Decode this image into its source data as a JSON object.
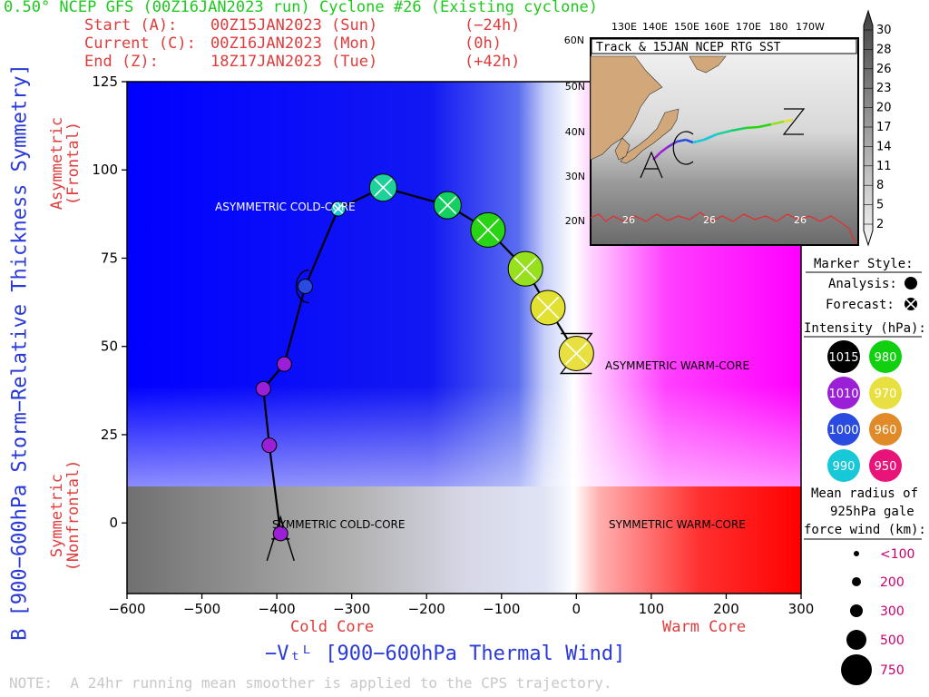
{
  "header": {
    "title": "0.50° NCEP GFS (00Z16JAN2023 run) Cyclone #26 (Existing cyclone)",
    "start": {
      "label": "Start (A):",
      "time": "00Z15JAN2023 (Sun)",
      "offset": "(−24h)"
    },
    "current": {
      "label": "Current (C):",
      "time": "00Z16JAN2023 (Mon)",
      "offset": "(0h)"
    },
    "end": {
      "label": "End (Z):",
      "time": "18Z17JAN2023 (Tue)",
      "offset": "(+42h)"
    }
  },
  "chart_data": {
    "type": "scatter",
    "xlabel": "−Vₜᴸ [900−600hPa Thermal Wind]",
    "ylabel": "B [900−600hPa Storm−Relative Thickness Symmetry]",
    "xlim": [
      -600,
      300
    ],
    "ylim": [
      -20,
      125
    ],
    "x_ticks": [
      -600,
      -500,
      -400,
      -300,
      -200,
      -100,
      0,
      100,
      200,
      300
    ],
    "y_ticks": [
      0,
      25,
      50,
      75,
      100,
      125
    ],
    "x_side_labels": {
      "left": "Cold Core",
      "right": "Warm Core"
    },
    "y_side_labels": {
      "top": "Asymmetric\n(Frontal)",
      "bottom": "Symmetric\n(Nonfrontal)"
    },
    "quadrants": [
      "ASYMMETRIC COLD-CORE",
      "ASYMMETRIC WARM-CORE",
      "SYMMETRIC COLD-CORE",
      "SYMMETRIC WARM-CORE"
    ],
    "track": [
      {
        "x": -395,
        "y": -3,
        "color": "#9b1fd6",
        "type": "analysis",
        "mark": "A",
        "size": 1
      },
      {
        "x": -410,
        "y": 22,
        "color": "#9b1fd6",
        "type": "analysis",
        "size": 1
      },
      {
        "x": -418,
        "y": 38,
        "color": "#9b1fd6",
        "type": "analysis",
        "size": 1
      },
      {
        "x": -390,
        "y": 45,
        "color": "#9b1fd6",
        "type": "analysis",
        "size": 1
      },
      {
        "x": -362,
        "y": 67,
        "color": "#2a4be0",
        "type": "analysis",
        "mark": "C",
        "size": 1
      },
      {
        "x": -318,
        "y": 89,
        "color": "#17c8d8",
        "type": "forecast",
        "size": 1
      },
      {
        "x": -258,
        "y": 95,
        "color": "#1ed09a",
        "type": "forecast",
        "size": 2
      },
      {
        "x": -172,
        "y": 90,
        "color": "#14d060",
        "type": "forecast",
        "size": 2
      },
      {
        "x": -118,
        "y": 83,
        "color": "#28d414",
        "type": "forecast",
        "size": 3
      },
      {
        "x": -68,
        "y": 72,
        "color": "#96e01e",
        "type": "forecast",
        "size": 3
      },
      {
        "x": -38,
        "y": 61,
        "color": "#e2e030",
        "type": "forecast",
        "size": 3
      },
      {
        "x": 0,
        "y": 48,
        "color": "#e8e040",
        "type": "forecast",
        "mark": "Z",
        "size": 3
      }
    ]
  },
  "inset": {
    "title": "Track & 15JAN NCEP RTG SST",
    "lon_labels": [
      "130E",
      "140E",
      "150E",
      "160E",
      "170E",
      "180",
      "170W"
    ],
    "lat_labels": [
      "60N",
      "50N",
      "40N",
      "30N",
      "20N"
    ],
    "sst_labels": [
      "26",
      "26",
      "26"
    ],
    "colorbar_labels": [
      "30",
      "28",
      "26",
      "23",
      "20",
      "17",
      "14",
      "11",
      "8",
      "5",
      "2"
    ]
  },
  "legend": {
    "marker_style": "Marker Style:",
    "analysis": "Analysis:",
    "forecast": "Forecast:",
    "intensity_title": "Intensity (hPa):",
    "intensities": [
      {
        "value": "1015",
        "color": "#000000",
        "text": "#ffffff"
      },
      {
        "value": "980",
        "color": "#10d010",
        "text": "#ffffff"
      },
      {
        "value": "1010",
        "color": "#9b1fd6",
        "text": "#ffffff"
      },
      {
        "value": "970",
        "color": "#e8e040",
        "text": "#ffffff"
      },
      {
        "value": "1000",
        "color": "#2a4be0",
        "text": "#ffffff"
      },
      {
        "value": "960",
        "color": "#e08a28",
        "text": "#ffffff"
      },
      {
        "value": "990",
        "color": "#17c8d8",
        "text": "#ffffff"
      },
      {
        "value": "950",
        "color": "#e8147a",
        "text": "#ffffff"
      }
    ],
    "radius_title_1": "Mean radius of",
    "radius_title_2": "925hPa gale",
    "radius_title_3": "force wind (km):",
    "radii": [
      "<100",
      "200",
      "300",
      "500",
      "750"
    ]
  },
  "note": "NOTE:  A 24hr running mean smoother is applied to the CPS trajectory."
}
